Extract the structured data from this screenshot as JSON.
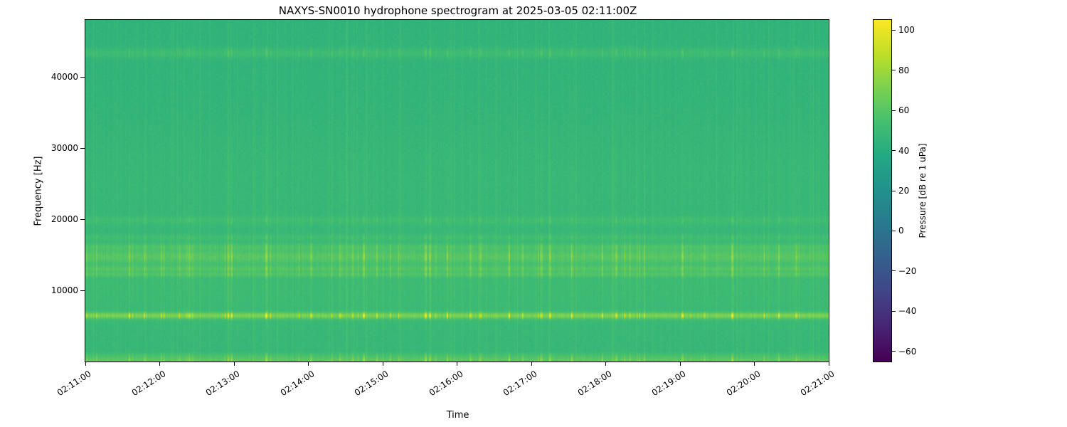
{
  "figure": {
    "title": "NAXYS-SN0010 hydrophone spectrogram at 2025-03-05 02:11:00Z",
    "xlabel": "Time",
    "ylabel": "Frequency [Hz]",
    "colorbar_label": "Pressure [dB re 1 uPa]"
  },
  "chart_data": {
    "type": "heatmap",
    "subtype": "spectrogram",
    "title": "NAXYS-SN0010 hydrophone spectrogram at 2025-03-05 02:11:00Z",
    "xlabel": "Time",
    "ylabel": "Frequency [Hz]",
    "time_start": "02:11:00",
    "time_end": "02:21:00",
    "time_span_minutes": 10,
    "x_ticks": [
      "02:11:00",
      "02:12:00",
      "02:13:00",
      "02:14:00",
      "02:15:00",
      "02:16:00",
      "02:17:00",
      "02:18:00",
      "02:19:00",
      "02:20:00",
      "02:21:00"
    ],
    "y_ticks": [
      10000,
      20000,
      30000,
      40000
    ],
    "ylim": [
      0,
      48000
    ],
    "grid": false,
    "colormap": "viridis",
    "colorbar": {
      "label": "Pressure [dB re 1 uPa]",
      "ticks": [
        100,
        80,
        60,
        40,
        20,
        0,
        -20,
        -40,
        -60
      ],
      "vmin": -65,
      "vmax": 105,
      "position": "right"
    },
    "background_db": 48,
    "low_freq_boost": {
      "below_hz": 1500,
      "peak_db": 18
    },
    "bands": [
      {
        "center_hz": 6500,
        "width_hz": 300,
        "peak_db": 26
      },
      {
        "center_hz": 11000,
        "width_hz": 4000,
        "peak_db": 4
      },
      {
        "center_hz": 12300,
        "width_hz": 250,
        "peak_db": 9
      },
      {
        "center_hz": 13100,
        "width_hz": 300,
        "peak_db": 10
      },
      {
        "center_hz": 14800,
        "width_hz": 700,
        "peak_db": 13
      },
      {
        "center_hz": 16200,
        "width_hz": 350,
        "peak_db": 8
      },
      {
        "center_hz": 17500,
        "width_hz": 300,
        "peak_db": 5
      },
      {
        "center_hz": 19900,
        "width_hz": 400,
        "peak_db": 5
      },
      {
        "center_hz": 26000,
        "width_hz": 5000,
        "peak_db": 2
      },
      {
        "center_hz": 43400,
        "width_hz": 500,
        "peak_db": 7
      }
    ],
    "texture": "dense narrow broadband vertical transient stripes across all frequencies, strongest within the 5-17 kHz bands",
    "colormap_stops": [
      [
        0.0,
        "#440154"
      ],
      [
        0.1,
        "#482475"
      ],
      [
        0.2,
        "#414487"
      ],
      [
        0.3,
        "#355f8d"
      ],
      [
        0.4,
        "#2a788e"
      ],
      [
        0.5,
        "#21918c"
      ],
      [
        0.6,
        "#22a884"
      ],
      [
        0.7,
        "#44bf70"
      ],
      [
        0.8,
        "#7ad151"
      ],
      [
        0.9,
        "#bddf26"
      ],
      [
        1.0,
        "#fde725"
      ]
    ]
  }
}
